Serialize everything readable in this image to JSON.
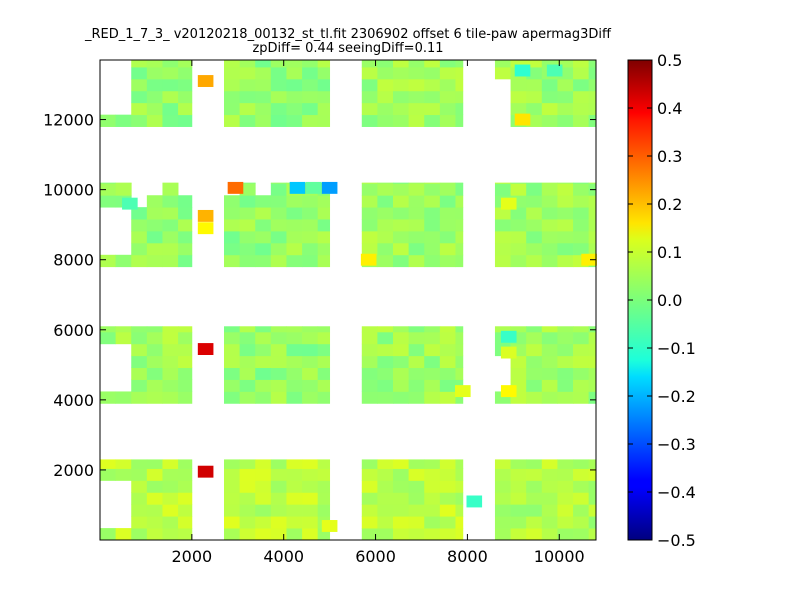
{
  "chart_data": {
    "type": "heatmap",
    "title_lines": [
      "_RED_1_7_3_ v20120218_00132_st_tl.fit 2306902 offset 6 tile-paw apermag3Diff",
      "zpDiff= 0.44 seeingDiff=0.11"
    ],
    "xlim": [
      0,
      10800
    ],
    "ylim": [
      0,
      13700
    ],
    "x_ticks": [
      2000,
      4000,
      6000,
      8000,
      10000
    ],
    "y_ticks": [
      2000,
      4000,
      6000,
      8000,
      10000,
      12000
    ],
    "x_tick_labels": [
      "2000",
      "4000",
      "6000",
      "8000",
      "10000"
    ],
    "y_tick_labels": [
      "2000",
      "4000",
      "6000",
      "8000",
      "10000",
      "12000"
    ],
    "colorbar": {
      "vmin": -0.5,
      "vmax": 0.5,
      "colormap": "jet",
      "ticks": [
        0.5,
        0.4,
        0.3,
        0.2,
        0.1,
        0.0,
        -0.1,
        -0.2,
        -0.3,
        -0.4,
        -0.5
      ],
      "tick_labels": [
        "0.5",
        "0.4",
        "0.3",
        "0.2",
        "0.1",
        "0.0",
        "−0.1",
        "−0.2",
        "−0.3",
        "−0.4",
        "−0.5"
      ]
    },
    "cell_size": 340,
    "detectors": [
      {
        "x": [
          0,
          2000
        ],
        "y": [
          0,
          2300
        ],
        "base": 0.06
      },
      {
        "x": [
          2700,
          5000
        ],
        "y": [
          0,
          2300
        ],
        "base": 0.06
      },
      {
        "x": [
          5700,
          7900
        ],
        "y": [
          0,
          2300
        ],
        "base": 0.06
      },
      {
        "x": [
          8600,
          10800
        ],
        "y": [
          0,
          2300
        ],
        "base": 0.05
      },
      {
        "x": [
          0,
          2000
        ],
        "y": [
          3900,
          6100
        ],
        "base": 0.03
      },
      {
        "x": [
          2700,
          5000
        ],
        "y": [
          3900,
          6100
        ],
        "base": 0.02
      },
      {
        "x": [
          5700,
          7900
        ],
        "y": [
          3900,
          6100
        ],
        "base": 0.03
      },
      {
        "x": [
          8600,
          10800
        ],
        "y": [
          3900,
          6100
        ],
        "base": 0.03
      },
      {
        "x": [
          0,
          2000
        ],
        "y": [
          7800,
          10200
        ],
        "base": 0.02
      },
      {
        "x": [
          2700,
          5000
        ],
        "y": [
          7800,
          10200
        ],
        "base": 0.02
      },
      {
        "x": [
          5700,
          7900
        ],
        "y": [
          7800,
          10200
        ],
        "base": 0.03
      },
      {
        "x": [
          8600,
          10800
        ],
        "y": [
          7800,
          10200
        ],
        "base": 0.03
      },
      {
        "x": [
          0,
          2000
        ],
        "y": [
          11800,
          13700
        ],
        "base": 0.02
      },
      {
        "x": [
          2700,
          5000
        ],
        "y": [
          11800,
          13700
        ],
        "base": 0.02
      },
      {
        "x": [
          5700,
          7900
        ],
        "y": [
          11800,
          13700
        ],
        "base": 0.03
      },
      {
        "x": [
          8600,
          10800
        ],
        "y": [
          11800,
          13700
        ],
        "base": 0.03
      }
    ],
    "gaps": [
      {
        "x": [
          0,
          650
        ],
        "y": [
          300,
          1800
        ]
      },
      {
        "x": [
          0,
          650
        ],
        "y": [
          4350,
          5600
        ]
      },
      {
        "x": [
          0,
          650
        ],
        "y": [
          8200,
          9600
        ]
      },
      {
        "x": [
          0,
          650
        ],
        "y": [
          12300,
          13700
        ]
      },
      {
        "x": [
          650,
          1000
        ],
        "y": [
          9600,
          10200
        ]
      },
      {
        "x": [
          1000,
          1350
        ],
        "y": [
          9950,
          10200
        ]
      },
      {
        "x": [
          1700,
          2000
        ],
        "y": [
          9950,
          10200
        ]
      },
      {
        "x": [
          2000,
          2300
        ],
        "y": [
          12300,
          13700
        ]
      },
      {
        "x": [
          7900,
          8150
        ],
        "y": [
          4400,
          6100
        ]
      },
      {
        "x": [
          8150,
          8600
        ],
        "y": [
          0,
          13700
        ]
      },
      {
        "x": [
          8600,
          8900
        ],
        "y": [
          4350,
          5300
        ]
      },
      {
        "x": [
          8600,
          8900
        ],
        "y": [
          11800,
          13200
        ]
      },
      {
        "x": [
          2700,
          2950
        ],
        "y": [
          9950,
          10200
        ]
      },
      {
        "x": [
          3300,
          3650
        ],
        "y": [
          9950,
          10200
        ]
      }
    ],
    "highlights": [
      {
        "x": 2300,
        "y": 1950,
        "value": 0.42
      },
      {
        "x": 2300,
        "y": 5450,
        "value": 0.41
      },
      {
        "x": 2300,
        "y": 9250,
        "value": 0.2
      },
      {
        "x": 2300,
        "y": 8900,
        "value": 0.13
      },
      {
        "x": 2300,
        "y": 13100,
        "value": 0.21
      },
      {
        "x": 2950,
        "y": 10050,
        "value": 0.27
      },
      {
        "x": 4300,
        "y": 10050,
        "value": -0.18
      },
      {
        "x": 4650,
        "y": 10050,
        "value": -0.03
      },
      {
        "x": 5000,
        "y": 10050,
        "value": -0.22
      },
      {
        "x": 650,
        "y": 9600,
        "value": -0.05
      },
      {
        "x": 8150,
        "y": 1100,
        "value": -0.07
      },
      {
        "x": 8900,
        "y": 5800,
        "value": -0.07
      },
      {
        "x": 8900,
        "y": 5350,
        "value": 0.09
      },
      {
        "x": 8900,
        "y": 4250,
        "value": 0.13
      },
      {
        "x": 8900,
        "y": 9600,
        "value": 0.1
      },
      {
        "x": 9200,
        "y": 13400,
        "value": -0.08
      },
      {
        "x": 9900,
        "y": 13400,
        "value": -0.05
      },
      {
        "x": 9200,
        "y": 12000,
        "value": 0.15
      },
      {
        "x": 5850,
        "y": 8000,
        "value": 0.14
      },
      {
        "x": 10650,
        "y": 8000,
        "value": 0.14
      },
      {
        "x": 7900,
        "y": 4250,
        "value": 0.1
      },
      {
        "x": 5000,
        "y": 400,
        "value": 0.1
      }
    ]
  }
}
